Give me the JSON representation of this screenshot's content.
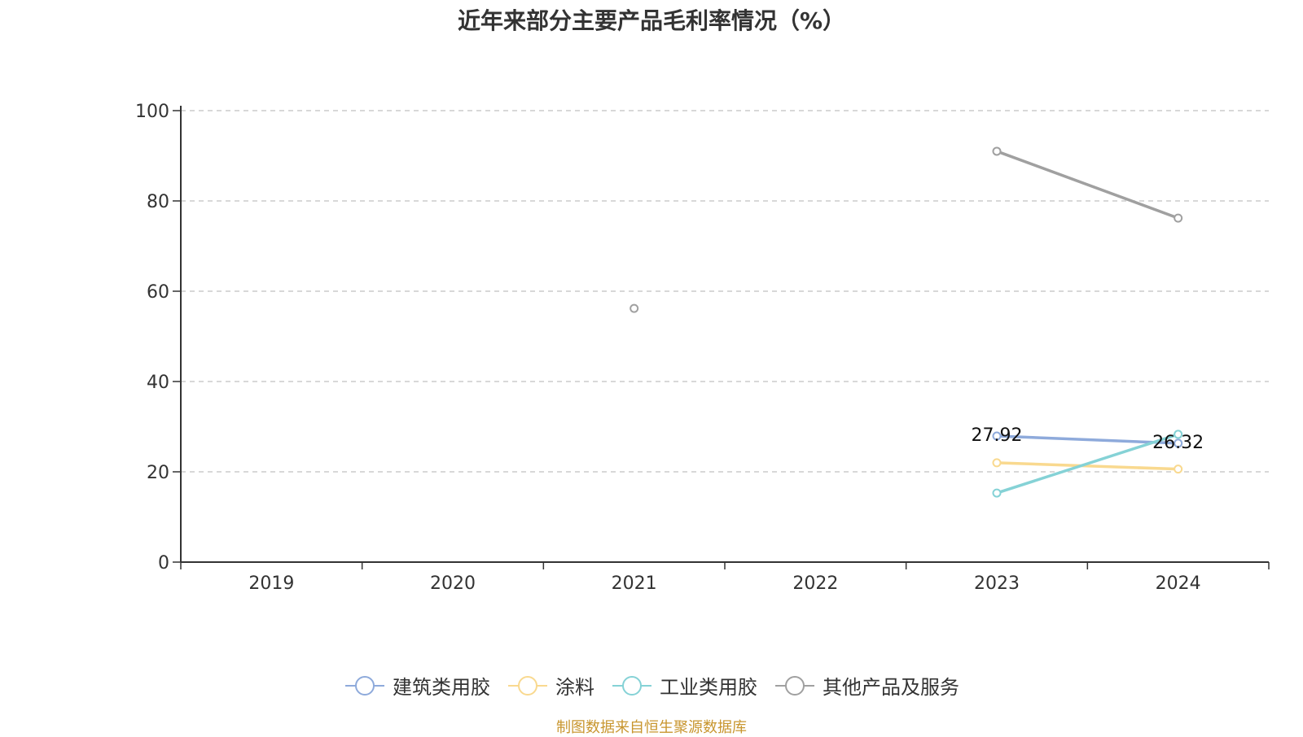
{
  "chart_data": {
    "type": "line",
    "title": "近年来部分主要产品毛利率情况（%）",
    "categories": [
      "2019",
      "2020",
      "2021",
      "2022",
      "2023",
      "2024"
    ],
    "ylim": [
      0,
      100
    ],
    "yticks": [
      0,
      20,
      40,
      60,
      80,
      100
    ],
    "grid": true,
    "legend_position": "bottom",
    "series": [
      {
        "name": "建筑类用胶",
        "color": "#8eaadb",
        "values": [
          null,
          null,
          null,
          null,
          27.92,
          26.32
        ]
      },
      {
        "name": "涂料",
        "color": "#f9d98f",
        "values": [
          null,
          null,
          null,
          null,
          22.0,
          20.6
        ]
      },
      {
        "name": "工业类用胶",
        "color": "#85d2d6",
        "values": [
          null,
          null,
          null,
          null,
          15.3,
          28.3
        ]
      },
      {
        "name": "其他产品及服务",
        "color": "#a0a0a0",
        "values": [
          null,
          null,
          56.2,
          null,
          91.0,
          76.2
        ]
      }
    ],
    "data_labels": [
      {
        "series": "建筑类用胶",
        "category": "2023",
        "text": "27.92"
      },
      {
        "series": "建筑类用胶",
        "category": "2024",
        "text": "26.32"
      }
    ]
  },
  "source": "制图数据来自恒生聚源数据库"
}
